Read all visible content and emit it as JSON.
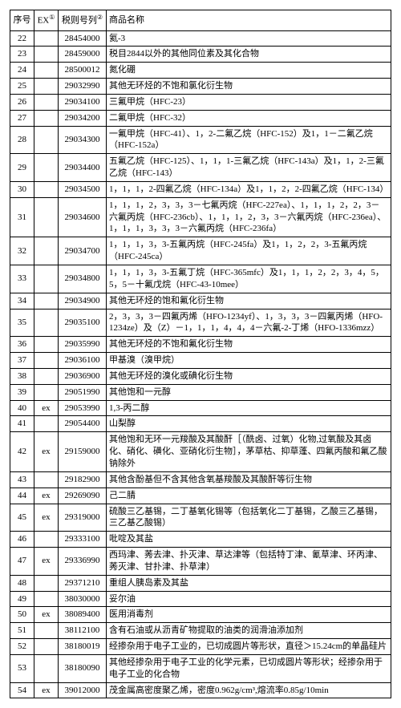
{
  "columns": {
    "seq": "序号",
    "ex": "EX",
    "ex_sup": "①",
    "tax": "税则号列",
    "tax_sup": "②",
    "name": "商品名称"
  },
  "rows": [
    {
      "seq": "22",
      "ex": "",
      "tax": "28454000",
      "name": "氦-3"
    },
    {
      "seq": "23",
      "ex": "",
      "tax": "28459000",
      "name": "税目2844以外的其他同位素及其化合物"
    },
    {
      "seq": "24",
      "ex": "",
      "tax": "28500012",
      "name": "氮化硼"
    },
    {
      "seq": "25",
      "ex": "",
      "tax": "29032990",
      "name": "其他无环烃的不饱和氯化衍生物"
    },
    {
      "seq": "26",
      "ex": "",
      "tax": "29034100",
      "name": "三氟甲烷（HFC-23）"
    },
    {
      "seq": "27",
      "ex": "",
      "tax": "29034200",
      "name": "二氟甲烷（HFC-32）"
    },
    {
      "seq": "28",
      "ex": "",
      "tax": "29034300",
      "name": "一氟甲烷（HFC-41）、1，2-二氟乙烷（HFC-152）及1，1－二氟乙烷（HFC-152a）"
    },
    {
      "seq": "29",
      "ex": "",
      "tax": "29034400",
      "name": "五氟乙烷（HFC-125）、1，1，1-三氟乙烷（HFC-143a）及1，1，2-三氟乙烷（HFC-143）"
    },
    {
      "seq": "30",
      "ex": "",
      "tax": "29034500",
      "name": "1，1，1，2-四氟乙烷（HFC-134a）及1，1，2，2-四氟乙烷（HFC-134）"
    },
    {
      "seq": "31",
      "ex": "",
      "tax": "29034600",
      "name": "1，1，1，2，3，3，3－七氟丙烷（HFC-227ea）、1，1，1，2，2，3－六氟丙烷（HFC-236cb）、1，1，1，2，3，3－六氟丙烷（HFC-236ea）、1，1，1，3，3，3－六氟丙烷（HFC-236fa）"
    },
    {
      "seq": "32",
      "ex": "",
      "tax": "29034700",
      "name": "1，1，1，3，3-五氟丙烷（HFC-245fa）及1，1，2，2，3-五氟丙烷（HFC-245ca）"
    },
    {
      "seq": "33",
      "ex": "",
      "tax": "29034800",
      "name": "1，1，1，3，3-五氟丁烷（HFC-365mfc）及1，1，1，2，2，3，4，5，5，5－十氟戊烷（HFC-43-10mee）"
    },
    {
      "seq": "34",
      "ex": "",
      "tax": "29034900",
      "name": "其他无环烃的饱和氟化衍生物"
    },
    {
      "seq": "35",
      "ex": "",
      "tax": "29035100",
      "name": "2，3，3，3－四氟丙烯（HFO-1234yf）、1，3，3，3－四氟丙烯（HFO-1234ze）及（Z）－1，1，1，4，4，4－六氟-2-丁烯（HFO-1336mzz）"
    },
    {
      "seq": "36",
      "ex": "",
      "tax": "29035990",
      "name": "其他无环烃的不饱和氟化衍生物"
    },
    {
      "seq": "37",
      "ex": "",
      "tax": "29036100",
      "name": "甲基溴（溴甲烷）"
    },
    {
      "seq": "38",
      "ex": "",
      "tax": "29036900",
      "name": "其他无环烃的溴化或碘化衍生物"
    },
    {
      "seq": "39",
      "ex": "",
      "tax": "29051990",
      "name": "其他饱和一元醇"
    },
    {
      "seq": "40",
      "ex": "ex",
      "tax": "29053990",
      "name": "1,3-丙二醇"
    },
    {
      "seq": "41",
      "ex": "",
      "tax": "29054400",
      "name": "山梨醇"
    },
    {
      "seq": "42",
      "ex": "ex",
      "tax": "29159000",
      "name": "其他饱和无环一元羧酸及其酸酐［（酰卤、过氧）化物,过氧酸及其卤化、硝化、磺化、亚硝化衍生物］，茅草枯、抑草蓬、四氟丙酸和氟乙酸钠除外"
    },
    {
      "seq": "43",
      "ex": "",
      "tax": "29182900",
      "name": "其他含酚基但不含其他含氧基羧酸及其酸酐等衍生物"
    },
    {
      "seq": "44",
      "ex": "ex",
      "tax": "29269090",
      "name": "己二腈"
    },
    {
      "seq": "45",
      "ex": "ex",
      "tax": "29319000",
      "name": "硫酸三乙基锡，二丁基氧化锡等（包括氧化二丁基锡，乙酸三乙基锡，三乙基乙酸锡）"
    },
    {
      "seq": "46",
      "ex": "",
      "tax": "29333100",
      "name": "吡啶及其盐"
    },
    {
      "seq": "47",
      "ex": "ex",
      "tax": "29336990",
      "name": "西玛津、莠去津、扑灭津、草达津等（包括特丁津、氰草津、环丙津、莠灭津、甘扑津、扑草津）"
    },
    {
      "seq": "48",
      "ex": "",
      "tax": "29371210",
      "name": "重组人胰岛素及其盐"
    },
    {
      "seq": "49",
      "ex": "",
      "tax": "38030000",
      "name": "妥尔油"
    },
    {
      "seq": "50",
      "ex": "ex",
      "tax": "38089400",
      "name": "医用消毒剂"
    },
    {
      "seq": "51",
      "ex": "",
      "tax": "38112100",
      "name": "含有石油或从沥青矿物提取的油类的润滑油添加剂"
    },
    {
      "seq": "52",
      "ex": "",
      "tax": "38180019",
      "name": "经掺杂用于电子工业的，已切成圆片等形状，直径＞15.24cm的单晶硅片"
    },
    {
      "seq": "53",
      "ex": "",
      "tax": "38180090",
      "name": "其他经掺杂用于电子工业的化学元素，已切成圆片等形状；经掺杂用于电子工业的化合物"
    },
    {
      "seq": "54",
      "ex": "ex",
      "tax": "39012000",
      "name": "茂金属高密度聚乙烯，密度0.962g/cm³,熔流率0.85g/10min"
    }
  ]
}
